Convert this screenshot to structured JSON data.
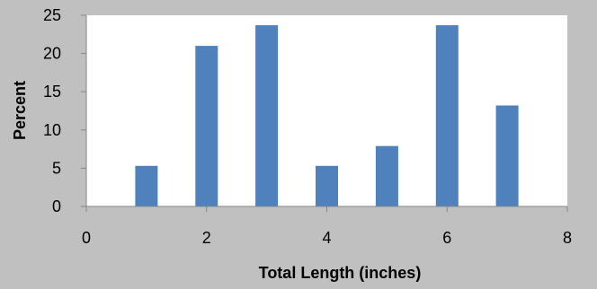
{
  "chart_data": {
    "type": "bar",
    "title": "",
    "xlabel": "Total Length (inches)",
    "ylabel": "Percent",
    "x": [
      1,
      2,
      3,
      4,
      5,
      6,
      7
    ],
    "values": [
      5.3,
      21.0,
      23.7,
      5.3,
      7.9,
      23.7,
      13.2
    ],
    "xlim": [
      0,
      8
    ],
    "ylim": [
      0,
      25
    ],
    "xticks": [
      0,
      2,
      4,
      6,
      8
    ],
    "yticks": [
      0,
      5,
      10,
      15,
      20,
      25
    ],
    "grid": false,
    "legend": "none",
    "colors": {
      "bar": "#4f81bd",
      "plot_background": "#ffffff",
      "figure_background": "#c0c0c0",
      "axis": "#868686"
    }
  }
}
